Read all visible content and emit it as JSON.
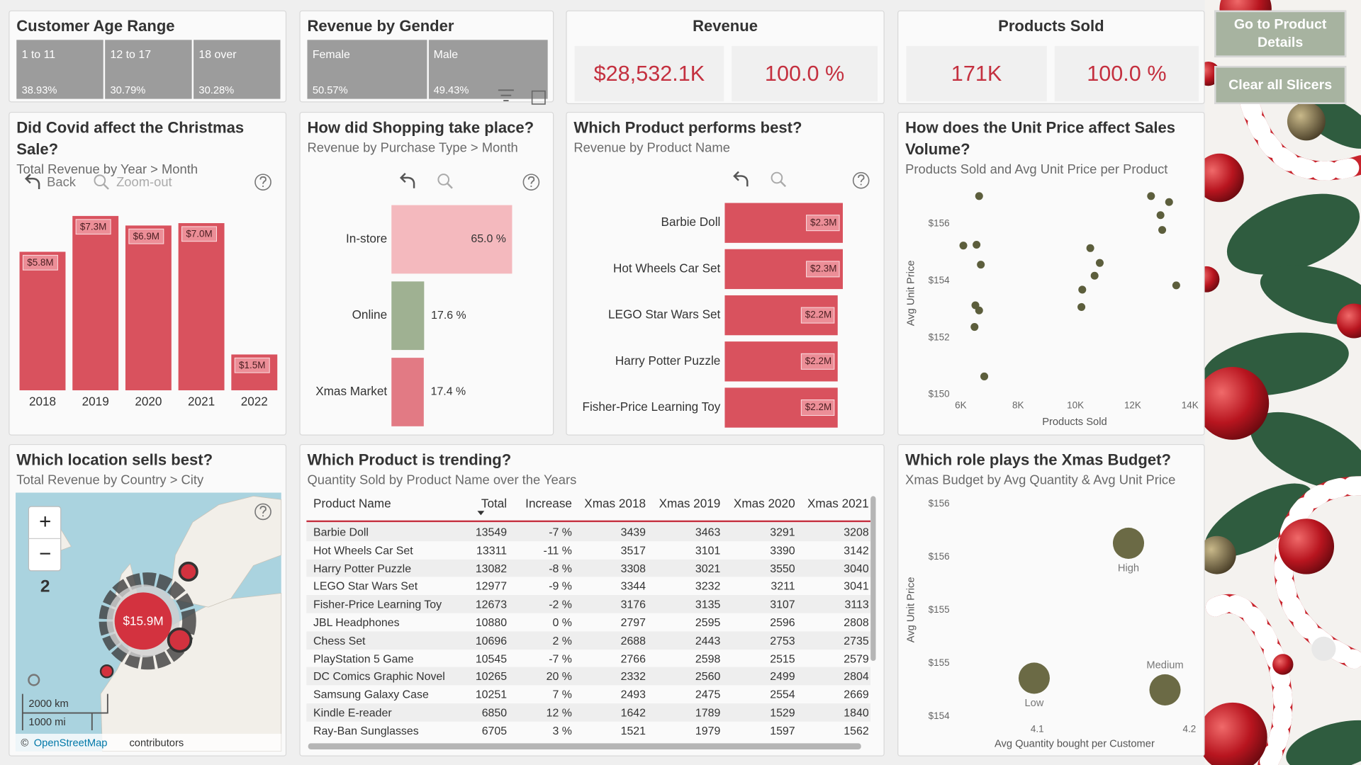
{
  "slicers": [
    {
      "title": "Customer Age Range",
      "items": [
        {
          "label": "1 to 11",
          "share": "38.93%"
        },
        {
          "label": "12 to 17",
          "share": "30.79%"
        },
        {
          "label": "18 over",
          "share": "30.28%"
        }
      ]
    },
    {
      "title": "Revenue by Gender",
      "items": [
        {
          "label": "Female",
          "share": "50.57%"
        },
        {
          "label": "Male",
          "share": "49.43%"
        }
      ]
    }
  ],
  "kpis": [
    {
      "title": "Revenue",
      "value": "$28,532.1K",
      "share": "100.0 %"
    },
    {
      "title": "Products Sold",
      "value": "171K",
      "share": "100.0 %"
    }
  ],
  "buttons": [
    "Go to Product Details",
    "Clear all Slicers"
  ],
  "visual_controls": {
    "back": "Back",
    "zoom_out": "Zoom-out"
  },
  "chart_data": [
    {
      "type": "bar",
      "title": "Did Covid affect the Christmas Sale?",
      "subtitle": "Total Revenue by Year > Month",
      "categories": [
        "2018",
        "2019",
        "2020",
        "2021",
        "2022"
      ],
      "values": [
        5800000,
        7300000,
        6900000,
        7000000,
        1500000
      ],
      "value_labels": [
        "$5.8M",
        "$7.3M",
        "$6.9M",
        "$7.0M",
        "$1.5M"
      ],
      "color": "#d9525e"
    },
    {
      "type": "hbar",
      "title": "How did Shopping take place?",
      "subtitle": "Revenue by Purchase Type > Month",
      "categories": [
        "In-store",
        "Online",
        "Xmas Market"
      ],
      "values": [
        65.0,
        17.6,
        17.4
      ],
      "value_labels": [
        "65.0 %",
        "17.6 %",
        "17.4 %"
      ],
      "colors": [
        "#f4b9be",
        "#9fb192",
        "#e27a84"
      ]
    },
    {
      "type": "hbar",
      "title": "Which Product performs best?",
      "subtitle": "Revenue by Product Name",
      "categories": [
        "Barbie Doll",
        "Hot Wheels Car Set",
        "LEGO Star Wars Set",
        "Harry Potter Puzzle",
        "Fisher-Price Learning Toy"
      ],
      "values": [
        2300000,
        2300000,
        2200000,
        2200000,
        2200000
      ],
      "value_labels": [
        "$2.3M",
        "$2.3M",
        "$2.2M",
        "$2.2M",
        "$2.2M"
      ],
      "color": "#d9525e"
    },
    {
      "type": "scatter",
      "title": "How does the Unit Price affect Sales Volume?",
      "subtitle": "Products Sold and Avg Unit Price per Product",
      "x_label": "Products Sold",
      "y_label": "Avg Unit Price",
      "x": [
        6640,
        6090,
        6550,
        6700,
        6510,
        6640,
        6480,
        6820,
        10520,
        10850,
        10670,
        10240,
        10210,
        12640,
        13270,
        12970,
        13030,
        13520
      ],
      "values": [
        156.98,
        155.24,
        155.27,
        154.57,
        153.14,
        152.96,
        152.38,
        150.64,
        155.15,
        154.63,
        154.18,
        153.69,
        153.08,
        156.98,
        156.77,
        156.31,
        155.79,
        153.84
      ],
      "color": "#5c5e3c",
      "xlim": [
        5700,
        14000
      ],
      "xticks": [
        {
          "value": 6000,
          "label": "6K"
        },
        {
          "value": 8000,
          "label": "8K"
        },
        {
          "value": 10000,
          "label": "10K"
        },
        {
          "value": 12000,
          "label": "12K"
        },
        {
          "value": 14000,
          "label": "14K"
        }
      ],
      "ylim": [
        150,
        157
      ],
      "yticks": [
        {
          "value": 150,
          "label": "$150"
        },
        {
          "value": 152,
          "label": "$152"
        },
        {
          "value": 154,
          "label": "$154"
        },
        {
          "value": 156,
          "label": "$156"
        }
      ]
    },
    {
      "type": "scatter",
      "title": "Which role plays the Xmas Budget?",
      "subtitle": "Xmas Budget by Avg Quantity & Avg Unit Price",
      "x_label": "Avg Quantity bought per Customer",
      "y_label": "Avg Unit Price",
      "x": [
        4.16,
        4.098,
        4.184
      ],
      "values": [
        155.63,
        154.36,
        154.25
      ],
      "point_labels": [
        "High",
        "Low",
        "Medium"
      ],
      "color": "#6b6a45",
      "xlim": [
        4.023,
        4.205
      ],
      "xticks": [
        4.1,
        4.2
      ],
      "ylim": [
        154,
        156
      ],
      "yticks": [
        {
          "value": 154,
          "label": "$154"
        },
        {
          "value": 154.5,
          "label": "$155"
        },
        {
          "value": 155,
          "label": "$155"
        },
        {
          "value": 155.5,
          "label": "$156"
        },
        {
          "value": 156,
          "label": "$156"
        }
      ]
    }
  ],
  "map": {
    "title": "Which location sells best?",
    "subtitle": "Total Revenue by Country > City",
    "bubble_label": "$15.9M",
    "zoom_in": "+",
    "zoom_out": "−",
    "zoom_level": "2",
    "scale_km": "2000 km",
    "scale_mi": "1000 mi",
    "attribution": [
      "©",
      "OpenStreetMap",
      "contributors"
    ]
  },
  "table": {
    "title": "Which Product is trending?",
    "subtitle": "Quantity Sold by Product Name over the Years",
    "columns": [
      "Product Name",
      "Total",
      "Increase",
      "Xmas 2018",
      "Xmas 2019",
      "Xmas 2020",
      "Xmas 2021"
    ],
    "rows": [
      [
        "Barbie Doll",
        13549,
        "-7 %",
        3439,
        3463,
        3291,
        3208
      ],
      [
        "Hot Wheels Car Set",
        13311,
        "-11 %",
        3517,
        3101,
        3390,
        3142
      ],
      [
        "Harry Potter Puzzle",
        13082,
        "-8 %",
        3308,
        3021,
        3550,
        3040
      ],
      [
        "LEGO Star Wars Set",
        12977,
        "-9 %",
        3344,
        3232,
        3211,
        3041
      ],
      [
        "Fisher-Price Learning Toy",
        12673,
        "-2 %",
        3176,
        3135,
        3107,
        3113
      ],
      [
        "JBL Headphones",
        10880,
        "0 %",
        2797,
        2595,
        2596,
        2808
      ],
      [
        "Chess Set",
        10696,
        "2 %",
        2688,
        2443,
        2753,
        2735
      ],
      [
        "PlayStation 5 Game",
        10545,
        "-7 %",
        2766,
        2598,
        2515,
        2579
      ],
      [
        "DC Comics Graphic Novel",
        10265,
        "20 %",
        2332,
        2560,
        2499,
        2804
      ],
      [
        "Samsung Galaxy Case",
        10251,
        "7 %",
        2493,
        2475,
        2554,
        2669
      ],
      [
        "Kindle E-reader",
        6850,
        "12 %",
        1642,
        1789,
        1529,
        1840
      ],
      [
        "Ray-Ban Sunglasses",
        6705,
        "3 %",
        1521,
        1979,
        1597,
        1562
      ]
    ]
  }
}
